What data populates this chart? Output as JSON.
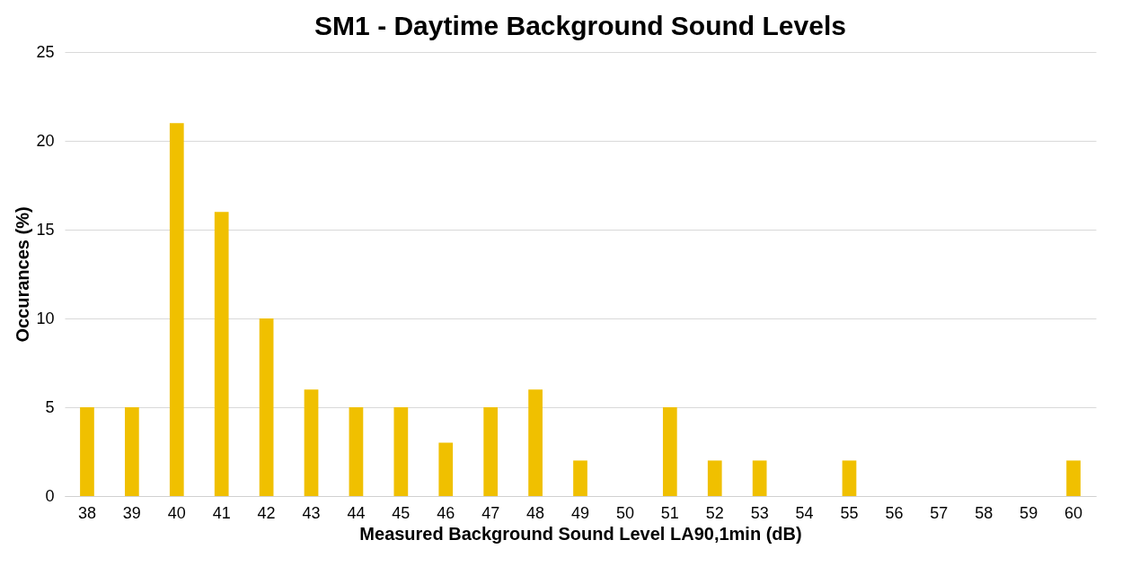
{
  "chart_data": {
    "type": "bar",
    "title": "SM1 - Daytime Background Sound Levels",
    "xlabel": "Measured Background Sound Level LA90,1min (dB)",
    "ylabel": "Occurances (%)",
    "categories": [
      "38",
      "39",
      "40",
      "41",
      "42",
      "43",
      "44",
      "45",
      "46",
      "47",
      "48",
      "49",
      "50",
      "51",
      "52",
      "53",
      "54",
      "55",
      "56",
      "57",
      "58",
      "59",
      "60"
    ],
    "values": [
      5,
      5,
      21,
      16,
      10,
      6,
      5,
      5,
      3,
      5,
      6,
      2,
      0,
      5,
      2,
      2,
      0,
      2,
      0,
      0,
      0,
      0,
      2
    ],
    "color": "#f0c000",
    "ylim": [
      0,
      25
    ],
    "yticks": [
      0,
      5,
      10,
      15,
      20,
      25
    ],
    "grid": "y"
  }
}
